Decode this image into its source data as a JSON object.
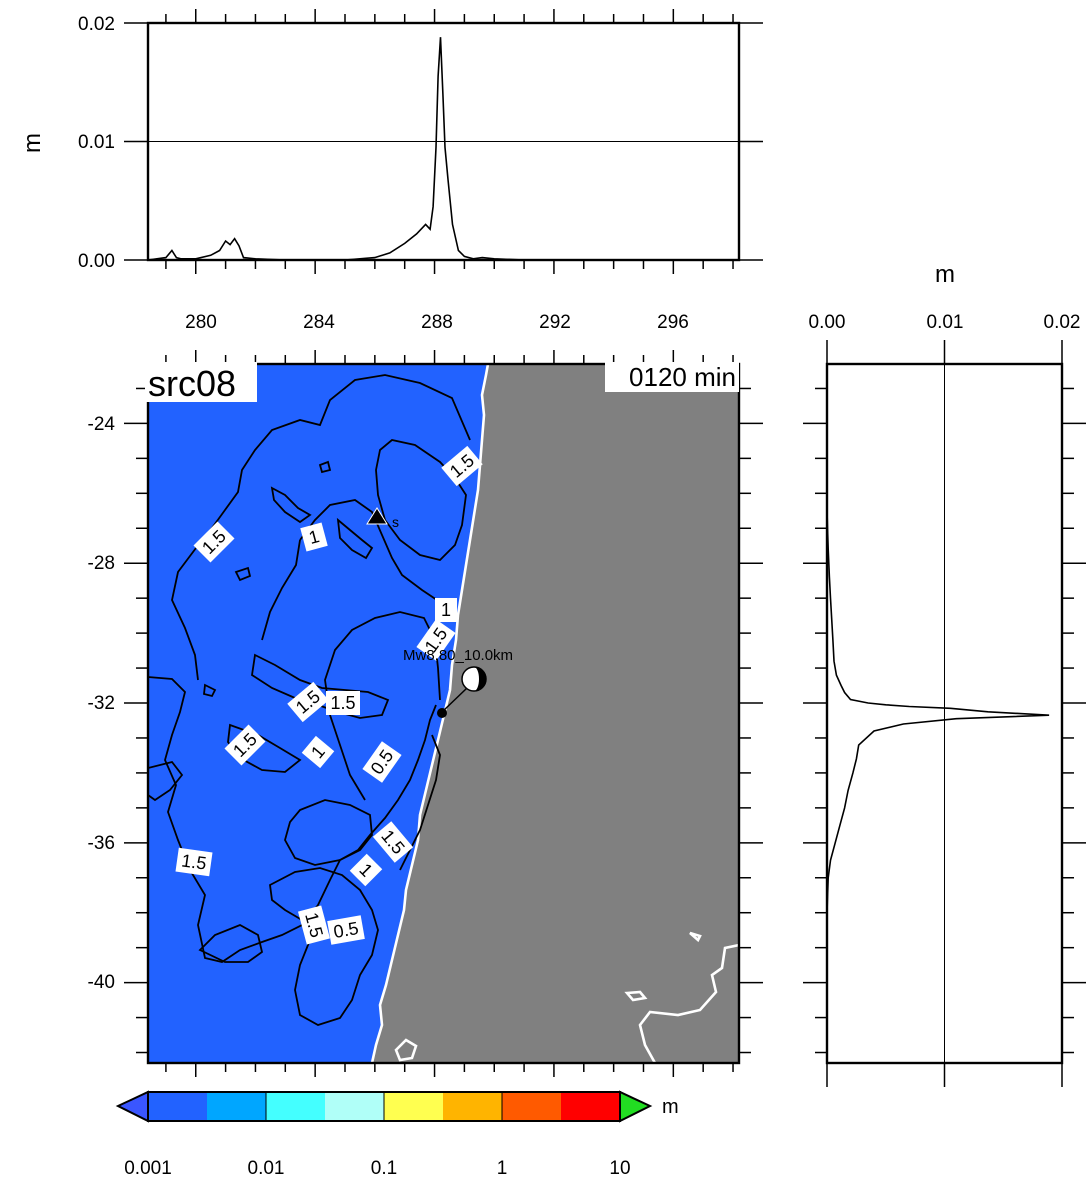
{
  "map": {
    "source_label": "src08",
    "time_label": "0120 min",
    "lon_ticks": [
      "280",
      "284",
      "288",
      "292",
      "296"
    ],
    "lat_ticks": [
      "-24",
      "-28",
      "-32",
      "-36",
      "-40"
    ],
    "epicenter_label": "Mw8.80_10.0km",
    "station_label": "s",
    "contour_labels": [
      "1.5",
      "1",
      "1.5",
      "1",
      "1.5",
      "1.5",
      "1.5",
      "1",
      "0.5",
      "1.5",
      "1.5",
      "1",
      "1.5",
      "1.5",
      "0.5"
    ],
    "ocean_color": "#2262ff",
    "land_color": "#808080"
  },
  "top_profile": {
    "ylabel": "m",
    "y_ticks": [
      "0.00",
      "0.01",
      "0.02"
    ]
  },
  "right_profile": {
    "xlabel": "m",
    "x_ticks": [
      "0.00",
      "0.01",
      "0.02"
    ]
  },
  "colorbar": {
    "unit": "m",
    "ticks": [
      "0.001",
      "0.01",
      "0.1",
      "1",
      "10"
    ],
    "colors": [
      "#2262ff",
      "#00a6ff",
      "#44ffff",
      "#b0fff8",
      "#ffff50",
      "#ffb400",
      "#ff5a00",
      "#ff0000"
    ],
    "under_color": "#3a56ff",
    "over_color": "#22dd22"
  },
  "chart_data": [
    {
      "type": "line",
      "title": "",
      "xlabel": "",
      "ylabel": "m",
      "xlim": [
        278.4,
        298.2
      ],
      "ylim": [
        0,
        0.02
      ],
      "x_ticks": [
        280,
        284,
        288,
        292,
        296
      ],
      "y_ticks": [
        0.0,
        0.01,
        0.02
      ],
      "grid": "horizontal line at 0.01",
      "series": [
        {
          "x": [
            278.4,
            279.0,
            279.2,
            279.35,
            279.5,
            280.0,
            280.5,
            280.8,
            281.0,
            281.15,
            281.3,
            281.45,
            281.6,
            282.0,
            283.0,
            284.0,
            285.0,
            286.0,
            286.5,
            287.0,
            287.4,
            287.7,
            287.85,
            287.95,
            288.05,
            288.12,
            288.2,
            288.28,
            288.35,
            288.45,
            288.6,
            288.8,
            289.0,
            289.3,
            289.6,
            290.0,
            291.0,
            292.0,
            294.0,
            296.0,
            298.2
          ],
          "y": [
            0.0,
            0.0002,
            0.0008,
            0.0002,
            0.0001,
            0.0001,
            0.0004,
            0.0008,
            0.0016,
            0.0013,
            0.0018,
            0.0012,
            0.0002,
            0.0001,
            0.0,
            0.0,
            0.0,
            0.0002,
            0.0006,
            0.0014,
            0.0022,
            0.003,
            0.0026,
            0.0045,
            0.0095,
            0.0155,
            0.0188,
            0.014,
            0.0095,
            0.0068,
            0.003,
            0.0008,
            0.0003,
            0.0001,
            0.0002,
            0.0001,
            0.0,
            0.0,
            0.0,
            0.0,
            0.0
          ]
        }
      ]
    },
    {
      "type": "line",
      "title": "",
      "xlabel": "m",
      "ylabel": "",
      "xlim": [
        0,
        0.02
      ],
      "ylim": [
        -42.3,
        -22.3
      ],
      "x_ticks": [
        0.0,
        0.01,
        0.02
      ],
      "y_ticks": [
        -24,
        -28,
        -32,
        -36,
        -40
      ],
      "grid": "vertical line at 0.01",
      "series": [
        {
          "x": [
            0.0,
            0.0,
            0.0001,
            0.0002,
            0.0003,
            0.0004,
            0.0005,
            0.0006,
            0.0008,
            0.0012,
            0.0015,
            0.002,
            0.0035,
            0.005,
            0.007,
            0.0105,
            0.0137,
            0.0189,
            0.011,
            0.0065,
            0.004,
            0.0027,
            0.0025,
            0.0022,
            0.0018,
            0.0015,
            0.0011,
            0.0007,
            0.0003,
            0.0001,
            0.0,
            0.0
          ],
          "y": [
            -22.3,
            -26.5,
            -27.6,
            -28.4,
            -29.0,
            -29.6,
            -30.2,
            -30.8,
            -31.2,
            -31.5,
            -31.7,
            -31.9,
            -32.0,
            -32.05,
            -32.1,
            -32.15,
            -32.25,
            -32.35,
            -32.45,
            -32.6,
            -32.8,
            -33.2,
            -33.6,
            -34.0,
            -34.5,
            -35.0,
            -35.5,
            -36.0,
            -36.5,
            -37.0,
            -38.0,
            -42.3
          ]
        }
      ]
    }
  ]
}
